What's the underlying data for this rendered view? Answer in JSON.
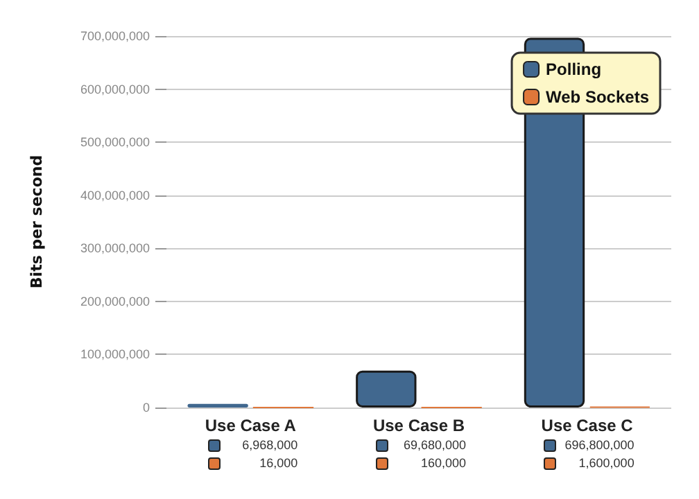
{
  "chart_data": {
    "type": "bar",
    "ylabel": "Bits per second",
    "categories": [
      "Use Case A",
      "Use Case B",
      "Use Case C"
    ],
    "series": [
      {
        "name": "Polling",
        "color": "#41688f",
        "values": [
          6968000,
          69680000,
          696800000
        ],
        "value_labels": [
          "6,968,000",
          "69,680,000",
          "696,800,000"
        ]
      },
      {
        "name": "Web Sockets",
        "color": "#e0773a",
        "values": [
          16000,
          160000,
          1600000
        ],
        "value_labels": [
          "16,000",
          "160,000",
          "1,600,000"
        ]
      }
    ],
    "ylim": [
      0,
      700000000
    ],
    "yticks": [
      0,
      {
        "value": 100000000,
        "label": "100,000,000"
      },
      {
        "value": 200000000,
        "label": "200,000,000"
      },
      {
        "value": 300000000,
        "label": "300,000,000"
      },
      {
        "value": 400000000,
        "label": "400,000,000"
      },
      {
        "value": 500000000,
        "label": "500,000,000"
      },
      {
        "value": 600000000,
        "label": "600,000,000"
      },
      {
        "value": 700000000,
        "label": "700,000,000"
      }
    ],
    "grid": "y",
    "legend": "top right"
  }
}
